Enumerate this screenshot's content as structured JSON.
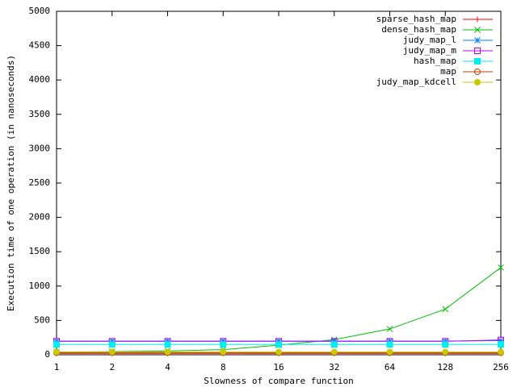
{
  "chart_data": {
    "type": "line",
    "xlabel": "Slowness of compare function",
    "ylabel": "Execution time of one operation (in nanoseconds)",
    "x": [
      1,
      2,
      4,
      8,
      16,
      32,
      64,
      128,
      256
    ],
    "xlim": [
      1,
      256
    ],
    "xticks": [
      1,
      2,
      4,
      8,
      16,
      32,
      64,
      128,
      256
    ],
    "xscale": "log2",
    "ylim": [
      0,
      5000
    ],
    "yticks": [
      0,
      500,
      1000,
      1500,
      2000,
      2500,
      3000,
      3500,
      4000,
      4500,
      5000
    ],
    "grid": false,
    "legend": "upper right",
    "series": [
      {
        "name": "sparse_hash_map",
        "color": "#ff0000",
        "marker": "plus",
        "values": [
          20,
          20,
          20,
          20,
          20,
          20,
          20,
          20,
          20
        ]
      },
      {
        "name": "dense_hash_map",
        "color": "#00c000",
        "marker": "cross",
        "values": [
          40,
          45,
          55,
          75,
          140,
          220,
          375,
          665,
          1270
        ]
      },
      {
        "name": "judy_map_l",
        "color": "#0080ff",
        "marker": "star",
        "values": [
          200,
          200,
          200,
          200,
          200,
          200,
          200,
          200,
          205
        ]
      },
      {
        "name": "judy_map_m",
        "color": "#c000ff",
        "marker": "square",
        "values": [
          195,
          195,
          195,
          195,
          195,
          195,
          195,
          195,
          215
        ]
      },
      {
        "name": "hash_map",
        "color": "#00eeee",
        "marker": "filled-square",
        "values": [
          150,
          150,
          150,
          150,
          150,
          150,
          150,
          150,
          150
        ]
      },
      {
        "name": "map",
        "color": "#c04000",
        "marker": "circle",
        "values": [
          30,
          30,
          30,
          30,
          30,
          30,
          30,
          30,
          30
        ]
      },
      {
        "name": "judy_map_kdcell",
        "color": "#c8c800",
        "marker": "filled-circle",
        "values": [
          40,
          40,
          40,
          40,
          40,
          40,
          40,
          40,
          40
        ]
      }
    ]
  }
}
